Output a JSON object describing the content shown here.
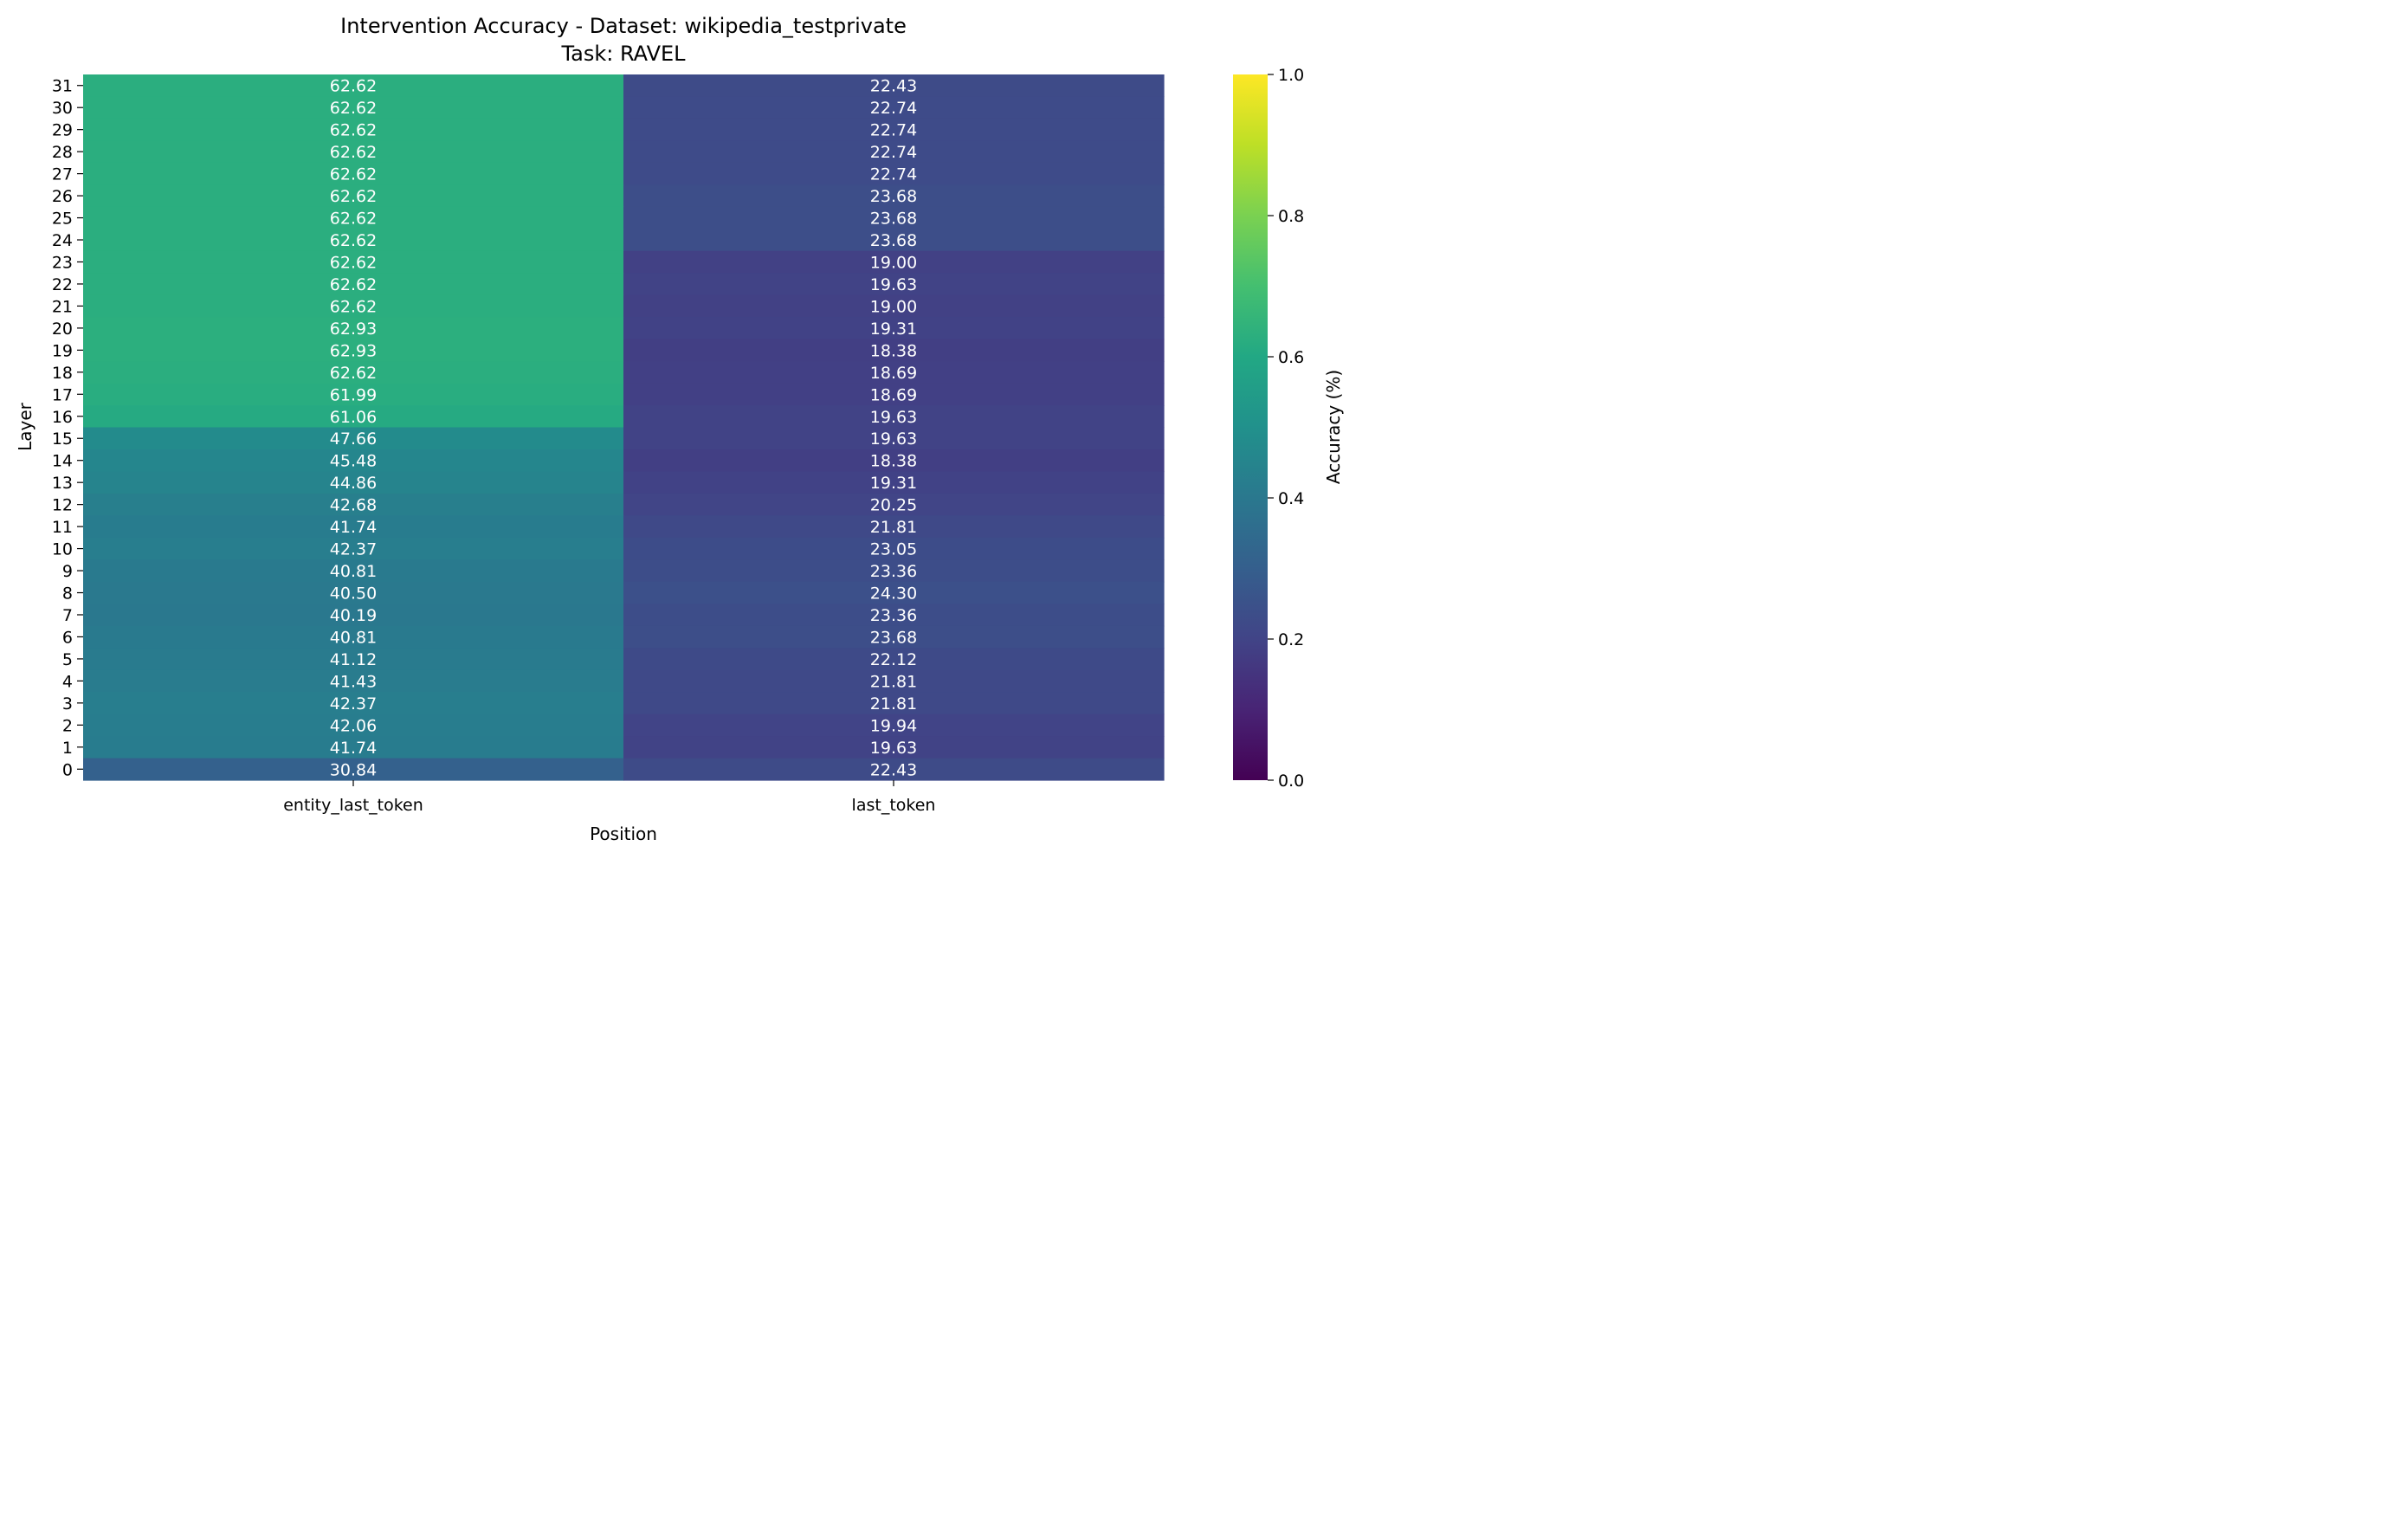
{
  "chart_data": {
    "type": "heatmap",
    "title": "Intervention Accuracy - Dataset: wikipedia_testprivate",
    "subtitle": "Task: RAVEL",
    "xlabel": "Position",
    "ylabel": "Layer",
    "colorbar_label": "Accuracy (%)",
    "colormap": "viridis",
    "color_range": [
      0.0,
      1.0
    ],
    "colorbar_ticks": [
      "0.0",
      "0.2",
      "0.4",
      "0.6",
      "0.8",
      "1.0"
    ],
    "columns": [
      "entity_last_token",
      "last_token"
    ],
    "rows": [
      {
        "layer": "31",
        "values": [
          "62.62",
          "22.43"
        ]
      },
      {
        "layer": "30",
        "values": [
          "62.62",
          "22.74"
        ]
      },
      {
        "layer": "29",
        "values": [
          "62.62",
          "22.74"
        ]
      },
      {
        "layer": "28",
        "values": [
          "62.62",
          "22.74"
        ]
      },
      {
        "layer": "27",
        "values": [
          "62.62",
          "22.74"
        ]
      },
      {
        "layer": "26",
        "values": [
          "62.62",
          "23.68"
        ]
      },
      {
        "layer": "25",
        "values": [
          "62.62",
          "23.68"
        ]
      },
      {
        "layer": "24",
        "values": [
          "62.62",
          "23.68"
        ]
      },
      {
        "layer": "23",
        "values": [
          "62.62",
          "19.00"
        ]
      },
      {
        "layer": "22",
        "values": [
          "62.62",
          "19.63"
        ]
      },
      {
        "layer": "21",
        "values": [
          "62.62",
          "19.00"
        ]
      },
      {
        "layer": "20",
        "values": [
          "62.93",
          "19.31"
        ]
      },
      {
        "layer": "19",
        "values": [
          "62.93",
          "18.38"
        ]
      },
      {
        "layer": "18",
        "values": [
          "62.62",
          "18.69"
        ]
      },
      {
        "layer": "17",
        "values": [
          "61.99",
          "18.69"
        ]
      },
      {
        "layer": "16",
        "values": [
          "61.06",
          "19.63"
        ]
      },
      {
        "layer": "15",
        "values": [
          "47.66",
          "19.63"
        ]
      },
      {
        "layer": "14",
        "values": [
          "45.48",
          "18.38"
        ]
      },
      {
        "layer": "13",
        "values": [
          "44.86",
          "19.31"
        ]
      },
      {
        "layer": "12",
        "values": [
          "42.68",
          "20.25"
        ]
      },
      {
        "layer": "11",
        "values": [
          "41.74",
          "21.81"
        ]
      },
      {
        "layer": "10",
        "values": [
          "42.37",
          "23.05"
        ]
      },
      {
        "layer": "9",
        "values": [
          "40.81",
          "23.36"
        ]
      },
      {
        "layer": "8",
        "values": [
          "40.50",
          "24.30"
        ]
      },
      {
        "layer": "7",
        "values": [
          "40.19",
          "23.36"
        ]
      },
      {
        "layer": "6",
        "values": [
          "40.81",
          "23.68"
        ]
      },
      {
        "layer": "5",
        "values": [
          "41.12",
          "22.12"
        ]
      },
      {
        "layer": "4",
        "values": [
          "41.43",
          "21.81"
        ]
      },
      {
        "layer": "3",
        "values": [
          "42.37",
          "21.81"
        ]
      },
      {
        "layer": "2",
        "values": [
          "42.06",
          "19.94"
        ]
      },
      {
        "layer": "1",
        "values": [
          "41.74",
          "19.63"
        ]
      },
      {
        "layer": "0",
        "values": [
          "30.84",
          "22.43"
        ]
      }
    ]
  }
}
